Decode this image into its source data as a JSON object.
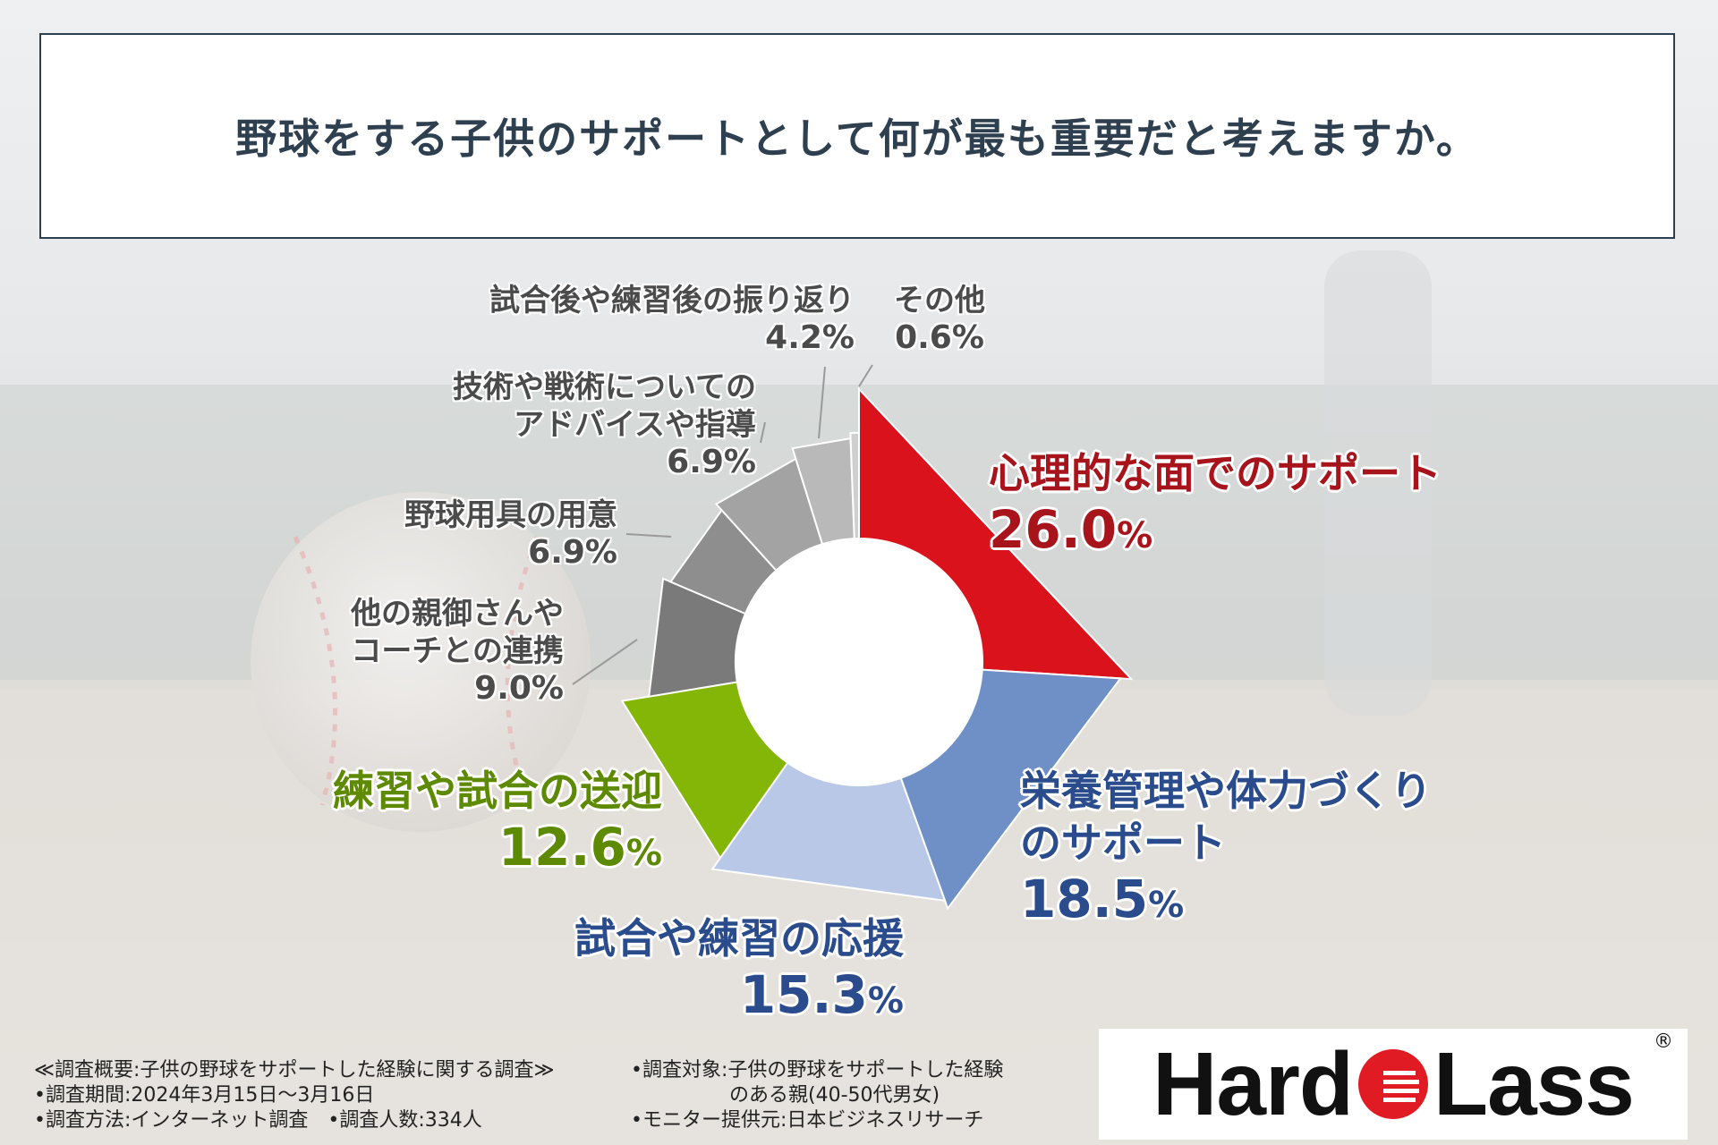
{
  "title": "野球をする子供のサポートとして何が最も重要だと考えますか。",
  "chart_data": {
    "type": "pie",
    "title": "野球をする子供のサポートとして何が最も重要だと考えますか。",
    "unit": "%",
    "slices": [
      {
        "label": "心理的な面でのサポート",
        "value": 26.0,
        "color": "#d9121b"
      },
      {
        "label": "栄養管理や体力づくりのサポート",
        "value": 18.5,
        "color": "#6e90c6"
      },
      {
        "label": "試合や練習の応援",
        "value": 15.3,
        "color": "#b8c8e6"
      },
      {
        "label": "練習や試合の送迎",
        "value": 12.6,
        "color": "#84b607"
      },
      {
        "label": "他の親御さんやコーチとの連携",
        "value": 9.0,
        "color": "#7a7a7a"
      },
      {
        "label": "野球用具の用意",
        "value": 6.9,
        "color": "#8e8e8e"
      },
      {
        "label": "技術や戦術についてのアドバイスや指導",
        "value": 6.9,
        "color": "#a3a3a3"
      },
      {
        "label": "試合後や練習後の振り返り",
        "value": 4.2,
        "color": "#b9b9b9"
      },
      {
        "label": "その他",
        "value": 0.6,
        "color": "#cfcfcf"
      }
    ]
  },
  "labels": {
    "psych": {
      "lines": [
        "心理的な面でのサポート"
      ],
      "value": "26.0",
      "pct": "%",
      "color": "#a8141b"
    },
    "nutrition": {
      "lines": [
        "栄養管理や体力づくり",
        "のサポート"
      ],
      "value": "18.5",
      "pct": "%",
      "color": "#2b4c8c"
    },
    "cheer": {
      "lines": [
        "試合や練習の応援"
      ],
      "value": "15.3",
      "pct": "%",
      "color": "#2b4c8c"
    },
    "pickup": {
      "lines": [
        "練習や試合の送迎"
      ],
      "value": "12.6",
      "pct": "%",
      "color": "#5d8a00"
    },
    "parents": {
      "lines": [
        "他の親御さんや",
        "コーチとの連携"
      ],
      "value": "9.0%"
    },
    "gear": {
      "lines": [
        "野球用具の用意"
      ],
      "value": "6.9%"
    },
    "advice": {
      "lines": [
        "技術や戦術についての",
        "アドバイスや指導"
      ],
      "value": "6.9%"
    },
    "review": {
      "lines": [
        "試合後や練習後の振り返り"
      ],
      "value": "4.2%"
    },
    "other": {
      "lines": [
        "その他"
      ],
      "value": "0.6%"
    }
  },
  "footer": {
    "left": [
      "≪調査概要:子供の野球をサポートした経験に関する調査≫",
      "•調査期間:2024年3月15日～3月16日",
      "•調査方法:インターネット調査　•調査人数:334人"
    ],
    "right": [
      "•調査対象:子供の野球をサポートした経験",
      "　　　　　のある親(40-50代男女)",
      "•モニター提供元:日本ビジネスリサーチ"
    ]
  },
  "logo": {
    "text_left": "Hard",
    "text_right": "Lass",
    "registered": "®",
    "accent": "#e01b23"
  }
}
